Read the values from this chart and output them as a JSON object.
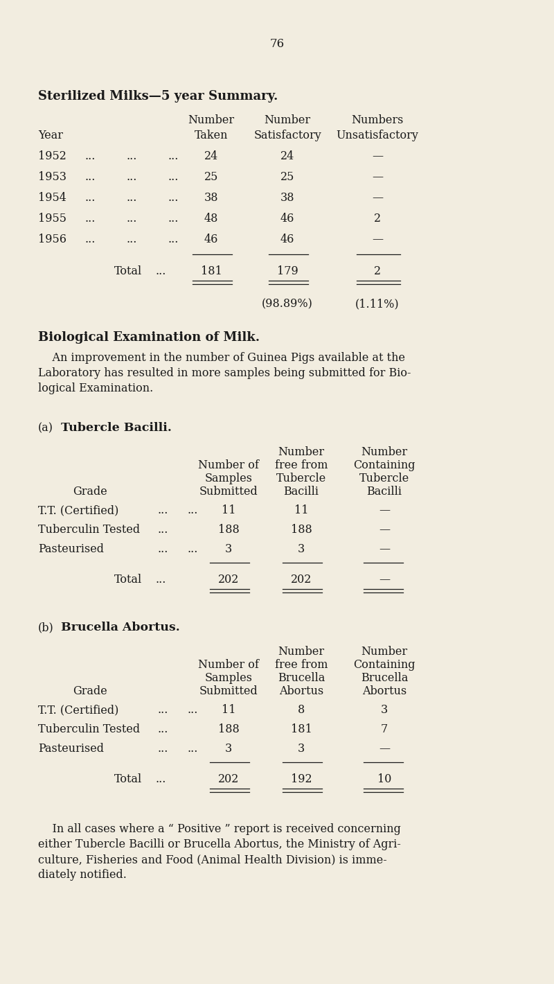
{
  "bg_color": "#f2ede0",
  "text_color": "#1a1a1a",
  "page_number": "76",
  "section1_title": "Sterilized Milks—5 year Summary.",
  "section2_title": "Biological Examination of Milk.",
  "section2_intro_lines": [
    "    An improvement in the number of Guinea Pigs available at the",
    "Laboratory has resulted in more samples being submitted for Bio-",
    "logical Examination."
  ],
  "section_a_label": "(a)",
  "section_a_title": "Tubercle Bacilli.",
  "section_b_label": "(b)",
  "section_b_title": "Brucella Abortus.",
  "final_para_lines": [
    "    In all cases where a “ Positive ” report is received concerning",
    "either Tubercle Bacilli or Brucella Abortus, the Ministry of Agri-",
    "culture, Fisheries and Food (Animal Health Division) is imme-",
    "diately notified."
  ],
  "t1_years": [
    "1952",
    "1953",
    "1954",
    "1955",
    "1956"
  ],
  "t1_taken": [
    "24",
    "25",
    "38",
    "48",
    "46"
  ],
  "t1_satisfactory": [
    "24",
    "25",
    "38",
    "46",
    "46"
  ],
  "t1_unsatisfactory": [
    "—",
    "—",
    "—",
    "2",
    "—"
  ],
  "t1_total_taken": "181",
  "t1_total_sat": "179",
  "t1_total_unsat": "2",
  "t1_pct_sat": "(98.89%)",
  "t1_pct_unsat": "(1.11%)",
  "t2_grades": [
    "T.T. (Certified)",
    "Tuberculin Tested",
    "Pasteurised"
  ],
  "t2_dots1": [
    "...",
    "...",
    "..."
  ],
  "t2_dots2": [
    "...",
    "",
    "..."
  ],
  "t2_submitted": [
    "11",
    "188",
    "3"
  ],
  "t2_free": [
    "11",
    "188",
    "3"
  ],
  "t2_containing": [
    "—",
    "—",
    "—"
  ],
  "t2_total_submitted": "202",
  "t2_total_free": "202",
  "t2_total_containing": "—",
  "t3_grades": [
    "T.T. (Certified)",
    "Tuberculin Tested",
    "Pasteurised"
  ],
  "t3_dots1": [
    "...",
    "...",
    "..."
  ],
  "t3_dots2": [
    "...",
    "",
    "..."
  ],
  "t3_submitted": [
    "11",
    "188",
    "3"
  ],
  "t3_free": [
    "8",
    "181",
    "3"
  ],
  "t3_containing": [
    "3",
    "7",
    "—"
  ],
  "t3_total_submitted": "202",
  "t3_total_free": "192",
  "t3_total_containing": "10"
}
